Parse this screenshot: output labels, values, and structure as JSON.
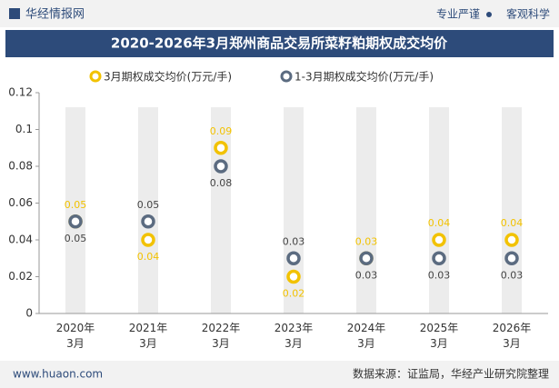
{
  "header": {
    "logo": "华经情报网",
    "slogan_left": "专业严谨",
    "slogan_right": "客观科学"
  },
  "chart_data": {
    "type": "line",
    "title": "2020-2026年3月郑州商品交易所菜籽粕期权成交均价",
    "categories": [
      "2020年\n3月",
      "2021年\n3月",
      "2022年\n3月",
      "2023年\n3月",
      "2024年\n3月",
      "2025年\n3月",
      "2026年\n3月"
    ],
    "series": [
      {
        "name": "3月期权成交均价(万元/手)",
        "color": "#f2c200",
        "values": [
          0.05,
          0.04,
          0.09,
          0.02,
          0.03,
          0.04,
          0.04
        ]
      },
      {
        "name": "1-3月期权成交均价(万元/手)",
        "color": "#5b6b80",
        "values": [
          0.05,
          0.05,
          0.08,
          0.03,
          0.03,
          0.03,
          0.03
        ]
      }
    ],
    "ylim": [
      0,
      0.12
    ],
    "yticks": [
      0,
      0.02,
      0.04,
      0.06,
      0.08,
      0.1,
      0.12
    ],
    "grid": false,
    "legend": "top"
  },
  "footer": {
    "website": "www.huaon.com",
    "source": "数据来源：证监局，华经产业研究院整理"
  }
}
